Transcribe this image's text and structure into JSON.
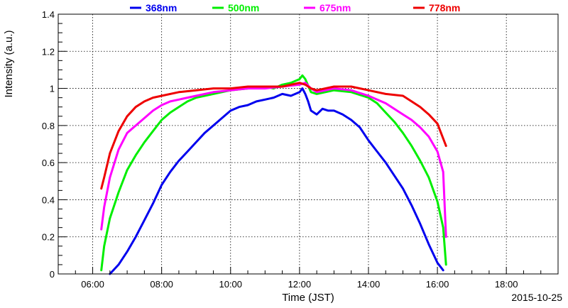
{
  "chart_data": {
    "type": "line",
    "title": "",
    "xlabel": "Time (JST)",
    "ylabel": "Intensity (a.u.)",
    "date_label": "2015-10-25",
    "x_tick_labels": [
      "06:00",
      "08:00",
      "10:00",
      "12:00",
      "14:00",
      "16:00",
      "18:00"
    ],
    "y_tick_labels": [
      "0",
      "0.2",
      "0.4",
      "0.6",
      "0.8",
      "1",
      "1.2",
      "1.4"
    ],
    "xlim": [
      "05:00",
      "19:30"
    ],
    "ylim": [
      0,
      1.4
    ],
    "grid": true,
    "legend_position": "top",
    "series": [
      {
        "name": "368nm",
        "color": "#0000ee",
        "x": [
          "06:30",
          "06:45",
          "07:00",
          "07:15",
          "07:30",
          "07:45",
          "08:00",
          "08:15",
          "08:30",
          "08:45",
          "09:00",
          "09:15",
          "09:30",
          "09:45",
          "10:00",
          "10:15",
          "10:30",
          "10:45",
          "11:00",
          "11:15",
          "11:30",
          "11:45",
          "12:00",
          "12:05",
          "12:10",
          "12:15",
          "12:20",
          "12:30",
          "12:40",
          "12:50",
          "13:00",
          "13:15",
          "13:30",
          "13:45",
          "14:00",
          "14:15",
          "14:30",
          "14:45",
          "15:00",
          "15:15",
          "15:30",
          "15:45",
          "16:00",
          "16:10"
        ],
        "y": [
          0.0,
          0.05,
          0.12,
          0.2,
          0.29,
          0.38,
          0.48,
          0.55,
          0.61,
          0.66,
          0.71,
          0.76,
          0.8,
          0.84,
          0.88,
          0.9,
          0.91,
          0.93,
          0.94,
          0.95,
          0.97,
          0.96,
          0.98,
          1.0,
          0.97,
          0.93,
          0.88,
          0.86,
          0.89,
          0.88,
          0.88,
          0.86,
          0.83,
          0.79,
          0.72,
          0.66,
          0.6,
          0.53,
          0.46,
          0.37,
          0.27,
          0.16,
          0.06,
          0.02
        ]
      },
      {
        "name": "500nm",
        "color": "#00ee00",
        "x": [
          "06:15",
          "06:20",
          "06:30",
          "06:45",
          "07:00",
          "07:15",
          "07:30",
          "07:45",
          "08:00",
          "08:15",
          "08:30",
          "08:45",
          "09:00",
          "09:15",
          "09:30",
          "09:45",
          "10:00",
          "10:30",
          "11:00",
          "11:15",
          "11:30",
          "11:45",
          "12:00",
          "12:05",
          "12:10",
          "12:20",
          "12:30",
          "12:45",
          "13:00",
          "13:30",
          "14:00",
          "14:15",
          "14:30",
          "14:45",
          "15:00",
          "15:15",
          "15:30",
          "15:45",
          "16:00",
          "16:10",
          "16:15"
        ],
        "y": [
          0.02,
          0.15,
          0.3,
          0.44,
          0.56,
          0.64,
          0.71,
          0.77,
          0.83,
          0.87,
          0.9,
          0.93,
          0.95,
          0.96,
          0.97,
          0.98,
          0.99,
          1.0,
          1.01,
          1.0,
          1.02,
          1.03,
          1.05,
          1.07,
          1.05,
          0.98,
          0.97,
          0.98,
          0.99,
          0.98,
          0.95,
          0.92,
          0.87,
          0.82,
          0.76,
          0.69,
          0.61,
          0.52,
          0.39,
          0.25,
          0.05
        ]
      },
      {
        "name": "675nm",
        "color": "#ff00ff",
        "x": [
          "06:15",
          "06:20",
          "06:30",
          "06:45",
          "07:00",
          "07:15",
          "07:30",
          "07:45",
          "08:00",
          "08:15",
          "08:30",
          "08:45",
          "09:00",
          "09:30",
          "10:00",
          "10:30",
          "11:00",
          "11:30",
          "12:00",
          "12:10",
          "12:20",
          "12:30",
          "13:00",
          "13:30",
          "14:00",
          "14:30",
          "15:00",
          "15:15",
          "15:30",
          "15:45",
          "16:00",
          "16:10",
          "16:15"
        ],
        "y": [
          0.24,
          0.36,
          0.52,
          0.67,
          0.76,
          0.8,
          0.84,
          0.88,
          0.91,
          0.93,
          0.94,
          0.95,
          0.96,
          0.98,
          0.99,
          1.0,
          1.0,
          1.01,
          1.02,
          1.03,
          1.0,
          0.98,
          1.0,
          0.99,
          0.96,
          0.92,
          0.86,
          0.83,
          0.79,
          0.74,
          0.66,
          0.55,
          0.2
        ]
      },
      {
        "name": "778nm",
        "color": "#ee0000",
        "x": [
          "06:15",
          "06:20",
          "06:30",
          "06:45",
          "07:00",
          "07:15",
          "07:30",
          "07:45",
          "08:00",
          "08:30",
          "09:00",
          "09:30",
          "10:00",
          "10:30",
          "11:00",
          "11:30",
          "12:00",
          "12:10",
          "12:20",
          "12:30",
          "13:00",
          "13:30",
          "14:00",
          "14:30",
          "15:00",
          "15:15",
          "15:30",
          "15:45",
          "16:00",
          "16:10",
          "16:15"
        ],
        "y": [
          0.46,
          0.52,
          0.65,
          0.77,
          0.85,
          0.9,
          0.93,
          0.95,
          0.96,
          0.98,
          0.99,
          1.0,
          1.0,
          1.01,
          1.01,
          1.01,
          1.03,
          1.02,
          1.0,
          0.99,
          1.01,
          1.01,
          0.99,
          0.97,
          0.96,
          0.93,
          0.9,
          0.86,
          0.81,
          0.73,
          0.69
        ]
      }
    ]
  }
}
